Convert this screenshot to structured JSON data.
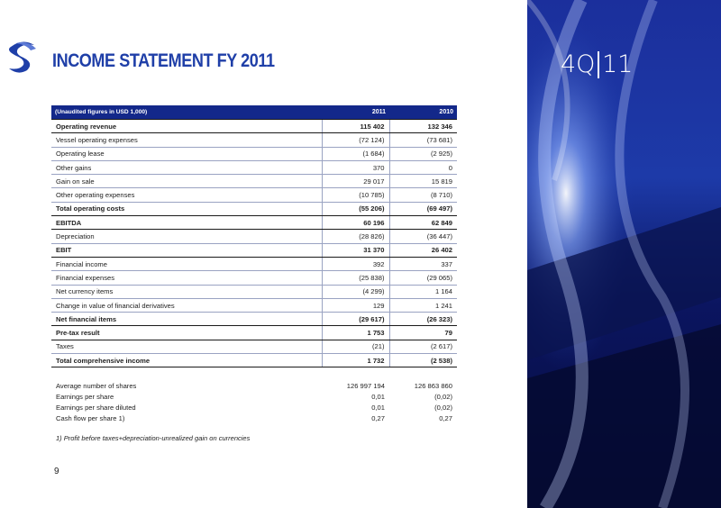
{
  "header": {
    "title": "INCOME STATEMENT FY 2011",
    "brand_quarter": "4Q",
    "brand_year": "11"
  },
  "table": {
    "columns": [
      "(Unaudited figures in USD 1,000)",
      "2011",
      "2010"
    ],
    "rows": [
      {
        "label": "Operating revenue",
        "v2011": "115 402",
        "v2010": "132 346",
        "bold": true
      },
      {
        "label": "Vessel operating expenses",
        "v2011": "(72 124)",
        "v2010": "(73 681)",
        "bold": false
      },
      {
        "label": "Operating lease",
        "v2011": "(1 684)",
        "v2010": "(2 925)",
        "bold": false
      },
      {
        "label": "Other gains",
        "v2011": "370",
        "v2010": "0",
        "bold": false
      },
      {
        "label": "Gain on sale",
        "v2011": "29 017",
        "v2010": "15 819",
        "bold": false
      },
      {
        "label": "Other operating expenses",
        "v2011": "(10 785)",
        "v2010": "(8 710)",
        "bold": false
      },
      {
        "label": "Total operating costs",
        "v2011": "(55 206)",
        "v2010": "(69 497)",
        "bold": true
      },
      {
        "label": "EBITDA",
        "v2011": "60 196",
        "v2010": "62 849",
        "bold": true
      },
      {
        "label": "Depreciation",
        "v2011": "(28 826)",
        "v2010": "(36 447)",
        "bold": false
      },
      {
        "label": "EBIT",
        "v2011": "31 370",
        "v2010": "26 402",
        "bold": true
      },
      {
        "label": "Financial income",
        "v2011": "392",
        "v2010": "337",
        "bold": false
      },
      {
        "label": "Financial expenses",
        "v2011": "(25 838)",
        "v2010": "(29 065)",
        "bold": false
      },
      {
        "label": "Net currency items",
        "v2011": "(4 299)",
        "v2010": "1 164",
        "bold": false
      },
      {
        "label": "Change in value of financial derivatives",
        "v2011": "129",
        "v2010": "1 241",
        "bold": false
      },
      {
        "label": "Net financial items",
        "v2011": "(29 617)",
        "v2010": "(26 323)",
        "bold": true
      },
      {
        "label": "Pre-tax result",
        "v2011": "1 753",
        "v2010": "79",
        "bold": true
      },
      {
        "label": "Taxes",
        "v2011": "(21)",
        "v2010": "(2 617)",
        "bold": false
      },
      {
        "label": "Total comprehensive income",
        "v2011": "1 732",
        "v2010": "(2 538)",
        "bold": true
      }
    ]
  },
  "per_share": {
    "rows": [
      {
        "label": "Average number of shares",
        "v2011": "126 997 194",
        "v2010": "126 863 860"
      },
      {
        "label": "Earnings per share",
        "v2011": "0,01",
        "v2010": "(0,02)"
      },
      {
        "label": "Earnings per share diluted",
        "v2011": "0,01",
        "v2010": "(0,02)"
      },
      {
        "label": "Cash flow per share 1)",
        "v2011": "0,27",
        "v2010": "0,27"
      }
    ]
  },
  "footnote": "1) Profit before taxes+depreciation-unrealized gain on currencies",
  "page_number": "9"
}
